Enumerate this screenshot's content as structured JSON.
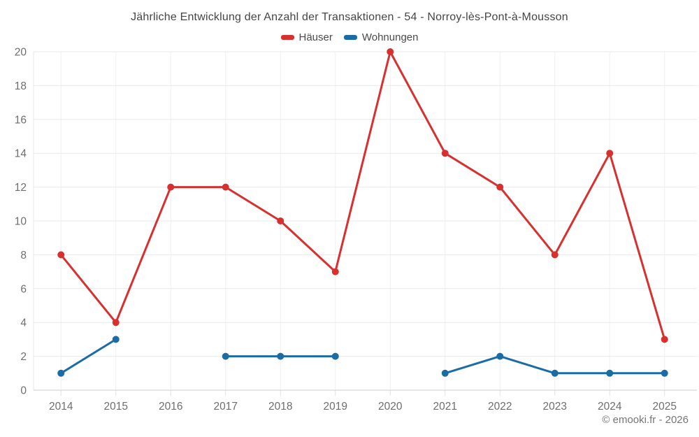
{
  "footer": "© emooki.fr - 2026",
  "chart_data": {
    "type": "line",
    "title": "Jährliche Entwicklung der Anzahl der Transaktionen - 54 - Norroy-lès-Pont-à-Mousson",
    "categories": [
      "2014",
      "2015",
      "2016",
      "2017",
      "2018",
      "2019",
      "2020",
      "2021",
      "2022",
      "2023",
      "2024",
      "2025"
    ],
    "series": [
      {
        "name": "Häuser",
        "slug": "haeuser",
        "color": "#d7302f",
        "values": [
          8,
          4,
          12,
          12,
          10,
          7,
          20,
          14,
          12,
          8,
          14,
          3
        ]
      },
      {
        "name": "Wohnungen",
        "slug": "wohnungen",
        "color": "#1a6ca6",
        "values": [
          1,
          3,
          null,
          2,
          2,
          2,
          null,
          1,
          2,
          1,
          1,
          1
        ]
      }
    ],
    "ylim": [
      0,
      20
    ],
    "ytick_step": 2,
    "yticks": [
      0,
      2,
      4,
      6,
      8,
      10,
      12,
      14,
      16,
      18,
      20
    ],
    "xlabel": "",
    "ylabel": "",
    "grid": true,
    "legend_position": "top",
    "colors": {
      "grid_horizontal": "#e9e9e9",
      "grid_vertical": "#f0f0f0",
      "axis": "#cfcfcf",
      "tick": "#e0e0e0",
      "label": "#6e6e6e"
    }
  }
}
